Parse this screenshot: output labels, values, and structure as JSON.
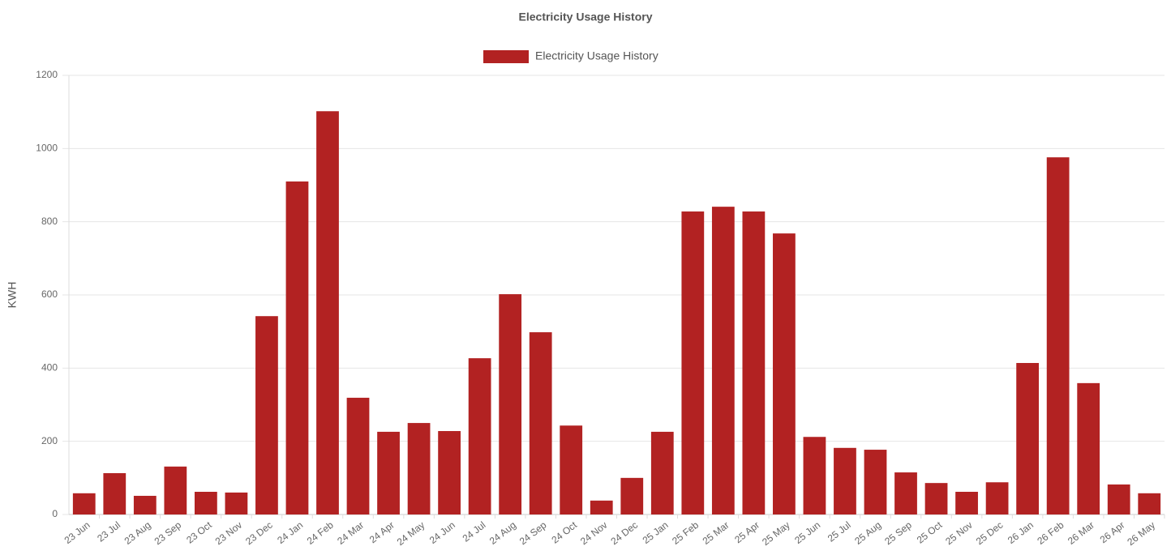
{
  "chart_data": {
    "type": "bar",
    "title": "Electricity Usage History",
    "y_label": "KWH",
    "categories": [
      "23 Jun",
      "23 Jul",
      "23 Aug",
      "23 Sep",
      "23 Oct",
      "23 Nov",
      "23 Dec",
      "24 Jan",
      "24 Feb",
      "24 Mar",
      "24 Apr",
      "24 May",
      "24 Jun",
      "24 Jul",
      "24 Aug",
      "24 Sep",
      "24 Oct",
      "24 Nov",
      "24 Dec",
      "25 Jan",
      "25 Feb",
      "25 Mar",
      "25 Apr",
      "25 May",
      "25 Jun",
      "25 Jul",
      "25 Aug",
      "25 Sep",
      "25 Oct",
      "25 Nov",
      "25 Dec",
      "26 Jan",
      "26 Feb",
      "26 Mar",
      "26 Apr",
      "26 May"
    ],
    "series": [
      {
        "name": "Electricity Usage History",
        "color": "#b22222",
        "values": [
          58,
          113,
          51,
          131,
          62,
          60,
          542,
          910,
          1102,
          319,
          226,
          250,
          228,
          427,
          602,
          498,
          243,
          38,
          100,
          226,
          828,
          841,
          828,
          768,
          212,
          182,
          177,
          115,
          86,
          62,
          88,
          414,
          976,
          359,
          82,
          58
        ]
      }
    ],
    "ylim": [
      0,
      1200
    ],
    "yticks": [
      0,
      200,
      400,
      600,
      800,
      1000,
      1200
    ],
    "grid": true,
    "legend": "top"
  }
}
